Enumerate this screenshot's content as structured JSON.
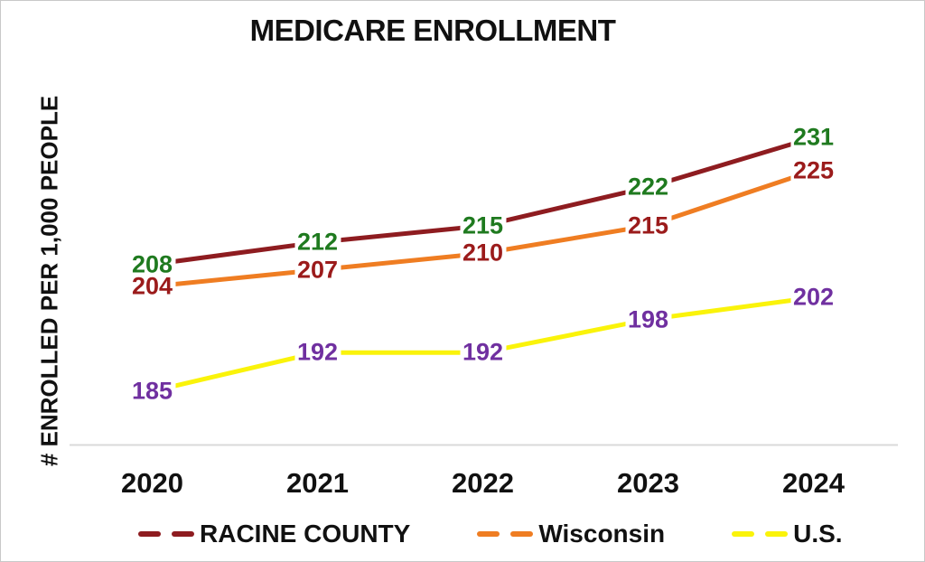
{
  "chart_data": {
    "type": "line",
    "title": "MEDICARE ENROLLMENT",
    "ylabel": "# ENROLLED PER 1,000 PEOPLE",
    "xlabel": "",
    "categories": [
      "2020",
      "2021",
      "2022",
      "2023",
      "2024"
    ],
    "series": [
      {
        "name": "RACINE COUNTY",
        "values": [
          208,
          212,
          215,
          222,
          231
        ],
        "line_color": "#8E1C20",
        "label_color": "#1F7A1F"
      },
      {
        "name": "Wisconsin",
        "values": [
          204,
          207,
          210,
          215,
          225
        ],
        "line_color": "#EF7D22",
        "label_color": "#9B1B1B"
      },
      {
        "name": "U.S.",
        "values": [
          185,
          192,
          192,
          198,
          202
        ],
        "line_color": "#FAF30A",
        "label_color": "#7030A0"
      }
    ],
    "data_labels": true,
    "legend_position": "bottom",
    "grid": false,
    "axis_line_color": "#DADADA",
    "ylim": [
      175,
      240
    ]
  }
}
